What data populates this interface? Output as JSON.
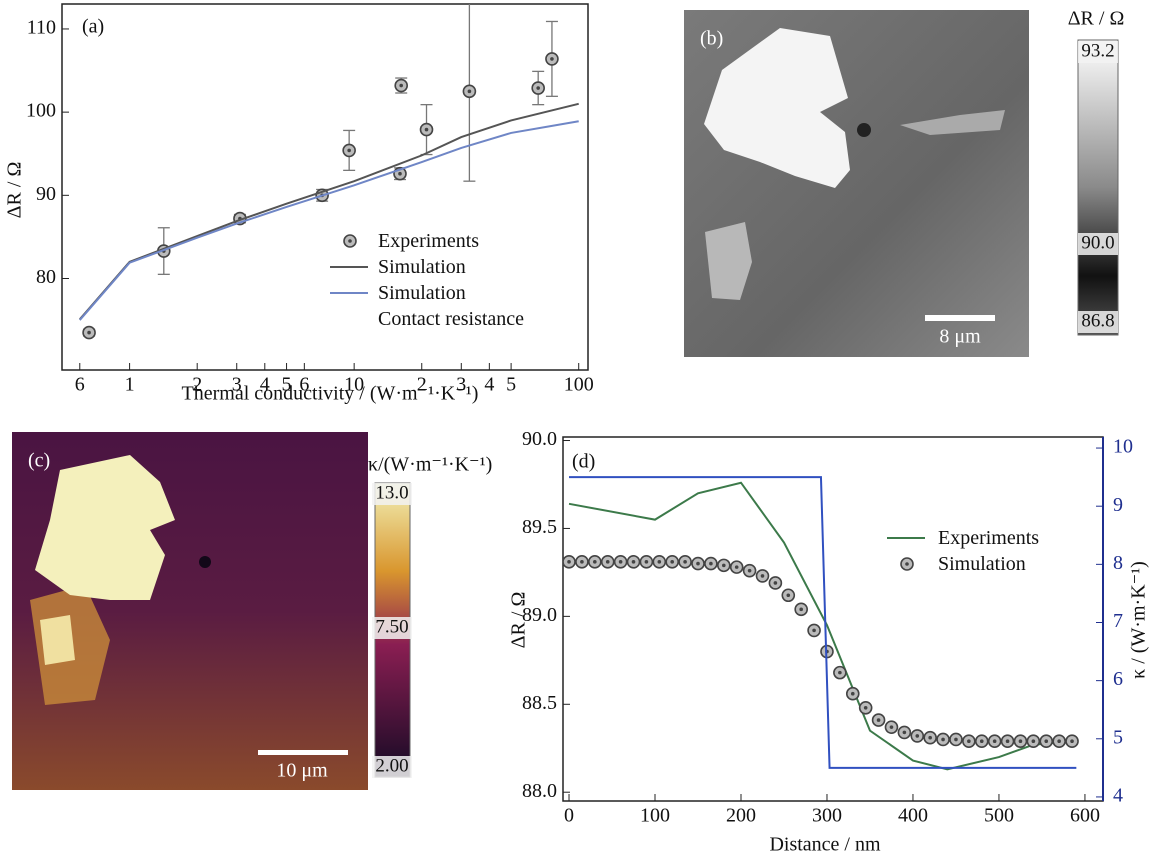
{
  "chart_data": [
    {
      "type": "line",
      "panel": "(a)",
      "x_label": "Thermal conductivity / (W·m⁻¹·K⁻¹)",
      "y_label": "ΔR / Ω",
      "xscale": "log",
      "xlim": [
        0.5,
        110
      ],
      "ylim": [
        69,
        113
      ],
      "xticks": [
        {
          "value": 0.6,
          "label": "6"
        },
        1,
        2,
        3,
        4,
        5,
        6,
        10,
        {
          "value": 20,
          "label": "2"
        },
        {
          "value": 30,
          "label": "3"
        },
        {
          "value": 40,
          "label": "4"
        },
        {
          "value": 50,
          "label": "5"
        },
        100
      ],
      "yticks": [
        80,
        90,
        100,
        110
      ],
      "legend": "lower right",
      "series": [
        {
          "name": "Experiments",
          "mode": "markers",
          "color": "#444444",
          "x": [
            0.66,
            1.42,
            3.1,
            7.2,
            9.5,
            16,
            16.2,
            21,
            32.6,
            66,
            76
          ],
          "values": [
            73.5,
            83.3,
            87.2,
            90.0,
            95.4,
            92.6,
            103.2,
            97.9,
            102.5,
            102.9,
            106.4
          ],
          "errors": [
            0.4,
            2.8,
            0.5,
            0.7,
            2.4,
            0.7,
            0.9,
            3.0,
            10.8,
            2.0,
            4.5
          ]
        },
        {
          "name": "Simulation",
          "mode": "line",
          "color": "#555555",
          "x": [
            0.6,
            1,
            2,
            3,
            5,
            10,
            20,
            30,
            50,
            100
          ],
          "values": [
            75.1,
            82.0,
            85.1,
            86.9,
            89.0,
            91.7,
            94.8,
            97.0,
            99.0,
            101.0
          ]
        },
        {
          "name": "Simulation\nContact resistance",
          "mode": "line",
          "color": "#6f86c6",
          "x": [
            0.6,
            1,
            2,
            3,
            5,
            10,
            20,
            30,
            50,
            100
          ],
          "values": [
            75.0,
            81.9,
            84.9,
            86.6,
            88.6,
            91.2,
            94.0,
            95.7,
            97.5,
            98.9
          ]
        }
      ]
    },
    {
      "type": "line",
      "panel": "(d)",
      "x_label": "Distance / nm",
      "y_label": "ΔR / Ω",
      "y2_label": "κ / (W·m·K⁻¹)",
      "xlim": [
        -7,
        621
      ],
      "ylim": [
        87.95,
        90.02
      ],
      "y2lim": [
        3.93,
        10.19
      ],
      "y2color": "#1f2f8f",
      "xticks": [
        0,
        100,
        200,
        300,
        400,
        500,
        600
      ],
      "yticks": [
        {
          "value": 88,
          "label": "88.0"
        },
        88.5,
        {
          "value": 89,
          "label": "89.0"
        },
        89.5,
        {
          "value": 90,
          "label": "90.0"
        }
      ],
      "y2ticks": [
        4,
        5,
        6,
        7,
        8,
        9,
        10
      ],
      "legend": "upper right",
      "series": [
        {
          "name": "Experiments",
          "mode": "line",
          "color": "#3c7a4a",
          "x": [
            0,
            100,
            150,
            200,
            250,
            300,
            350,
            400,
            440,
            500,
            540,
            585
          ],
          "values": [
            89.64,
            89.55,
            89.7,
            89.76,
            89.42,
            88.95,
            88.35,
            88.18,
            88.13,
            88.2,
            88.27,
            88.29
          ]
        },
        {
          "name": "Simulation",
          "mode": "markers",
          "color": "#444444",
          "x": [
            0,
            15,
            30,
            45,
            60,
            75,
            90,
            105,
            120,
            135,
            150,
            165,
            180,
            195,
            210,
            225,
            240,
            255,
            270,
            285,
            300,
            315,
            330,
            345,
            360,
            375,
            390,
            405,
            420,
            435,
            450,
            465,
            480,
            495,
            510,
            525,
            540,
            555,
            570,
            585
          ],
          "values": [
            89.31,
            89.31,
            89.31,
            89.31,
            89.31,
            89.31,
            89.31,
            89.31,
            89.31,
            89.31,
            89.3,
            89.3,
            89.29,
            89.28,
            89.26,
            89.23,
            89.19,
            89.12,
            89.04,
            88.92,
            88.8,
            88.68,
            88.56,
            88.48,
            88.41,
            88.37,
            88.34,
            88.32,
            88.31,
            88.3,
            88.3,
            88.29,
            88.29,
            88.29,
            88.29,
            88.29,
            88.29,
            88.29,
            88.29,
            88.29
          ]
        },
        {
          "mode": "line",
          "axis": "y2",
          "color": "#3050c0",
          "x": [
            0,
            293,
            303,
            590
          ],
          "values": [
            9.5,
            9.5,
            4.5,
            4.5
          ]
        }
      ]
    }
  ],
  "maps": [
    {
      "panel": "(b)",
      "colorbar_title": "ΔR / Ω",
      "colorbar_ticks": [
        93.2,
        {
          "value": 90,
          "label": "90.0"
        },
        86.8
      ],
      "scale_bar": "8 μm"
    },
    {
      "panel": "(c)",
      "colorbar_title": "κ/(W·m⁻¹·K⁻¹)",
      "colorbar_ticks": [
        {
          "value": 13,
          "label": "13.0"
        },
        {
          "value": 7.5,
          "label": "7.50"
        },
        {
          "value": 2,
          "label": "2.00"
        }
      ],
      "scale_bar": "10 μm"
    }
  ]
}
